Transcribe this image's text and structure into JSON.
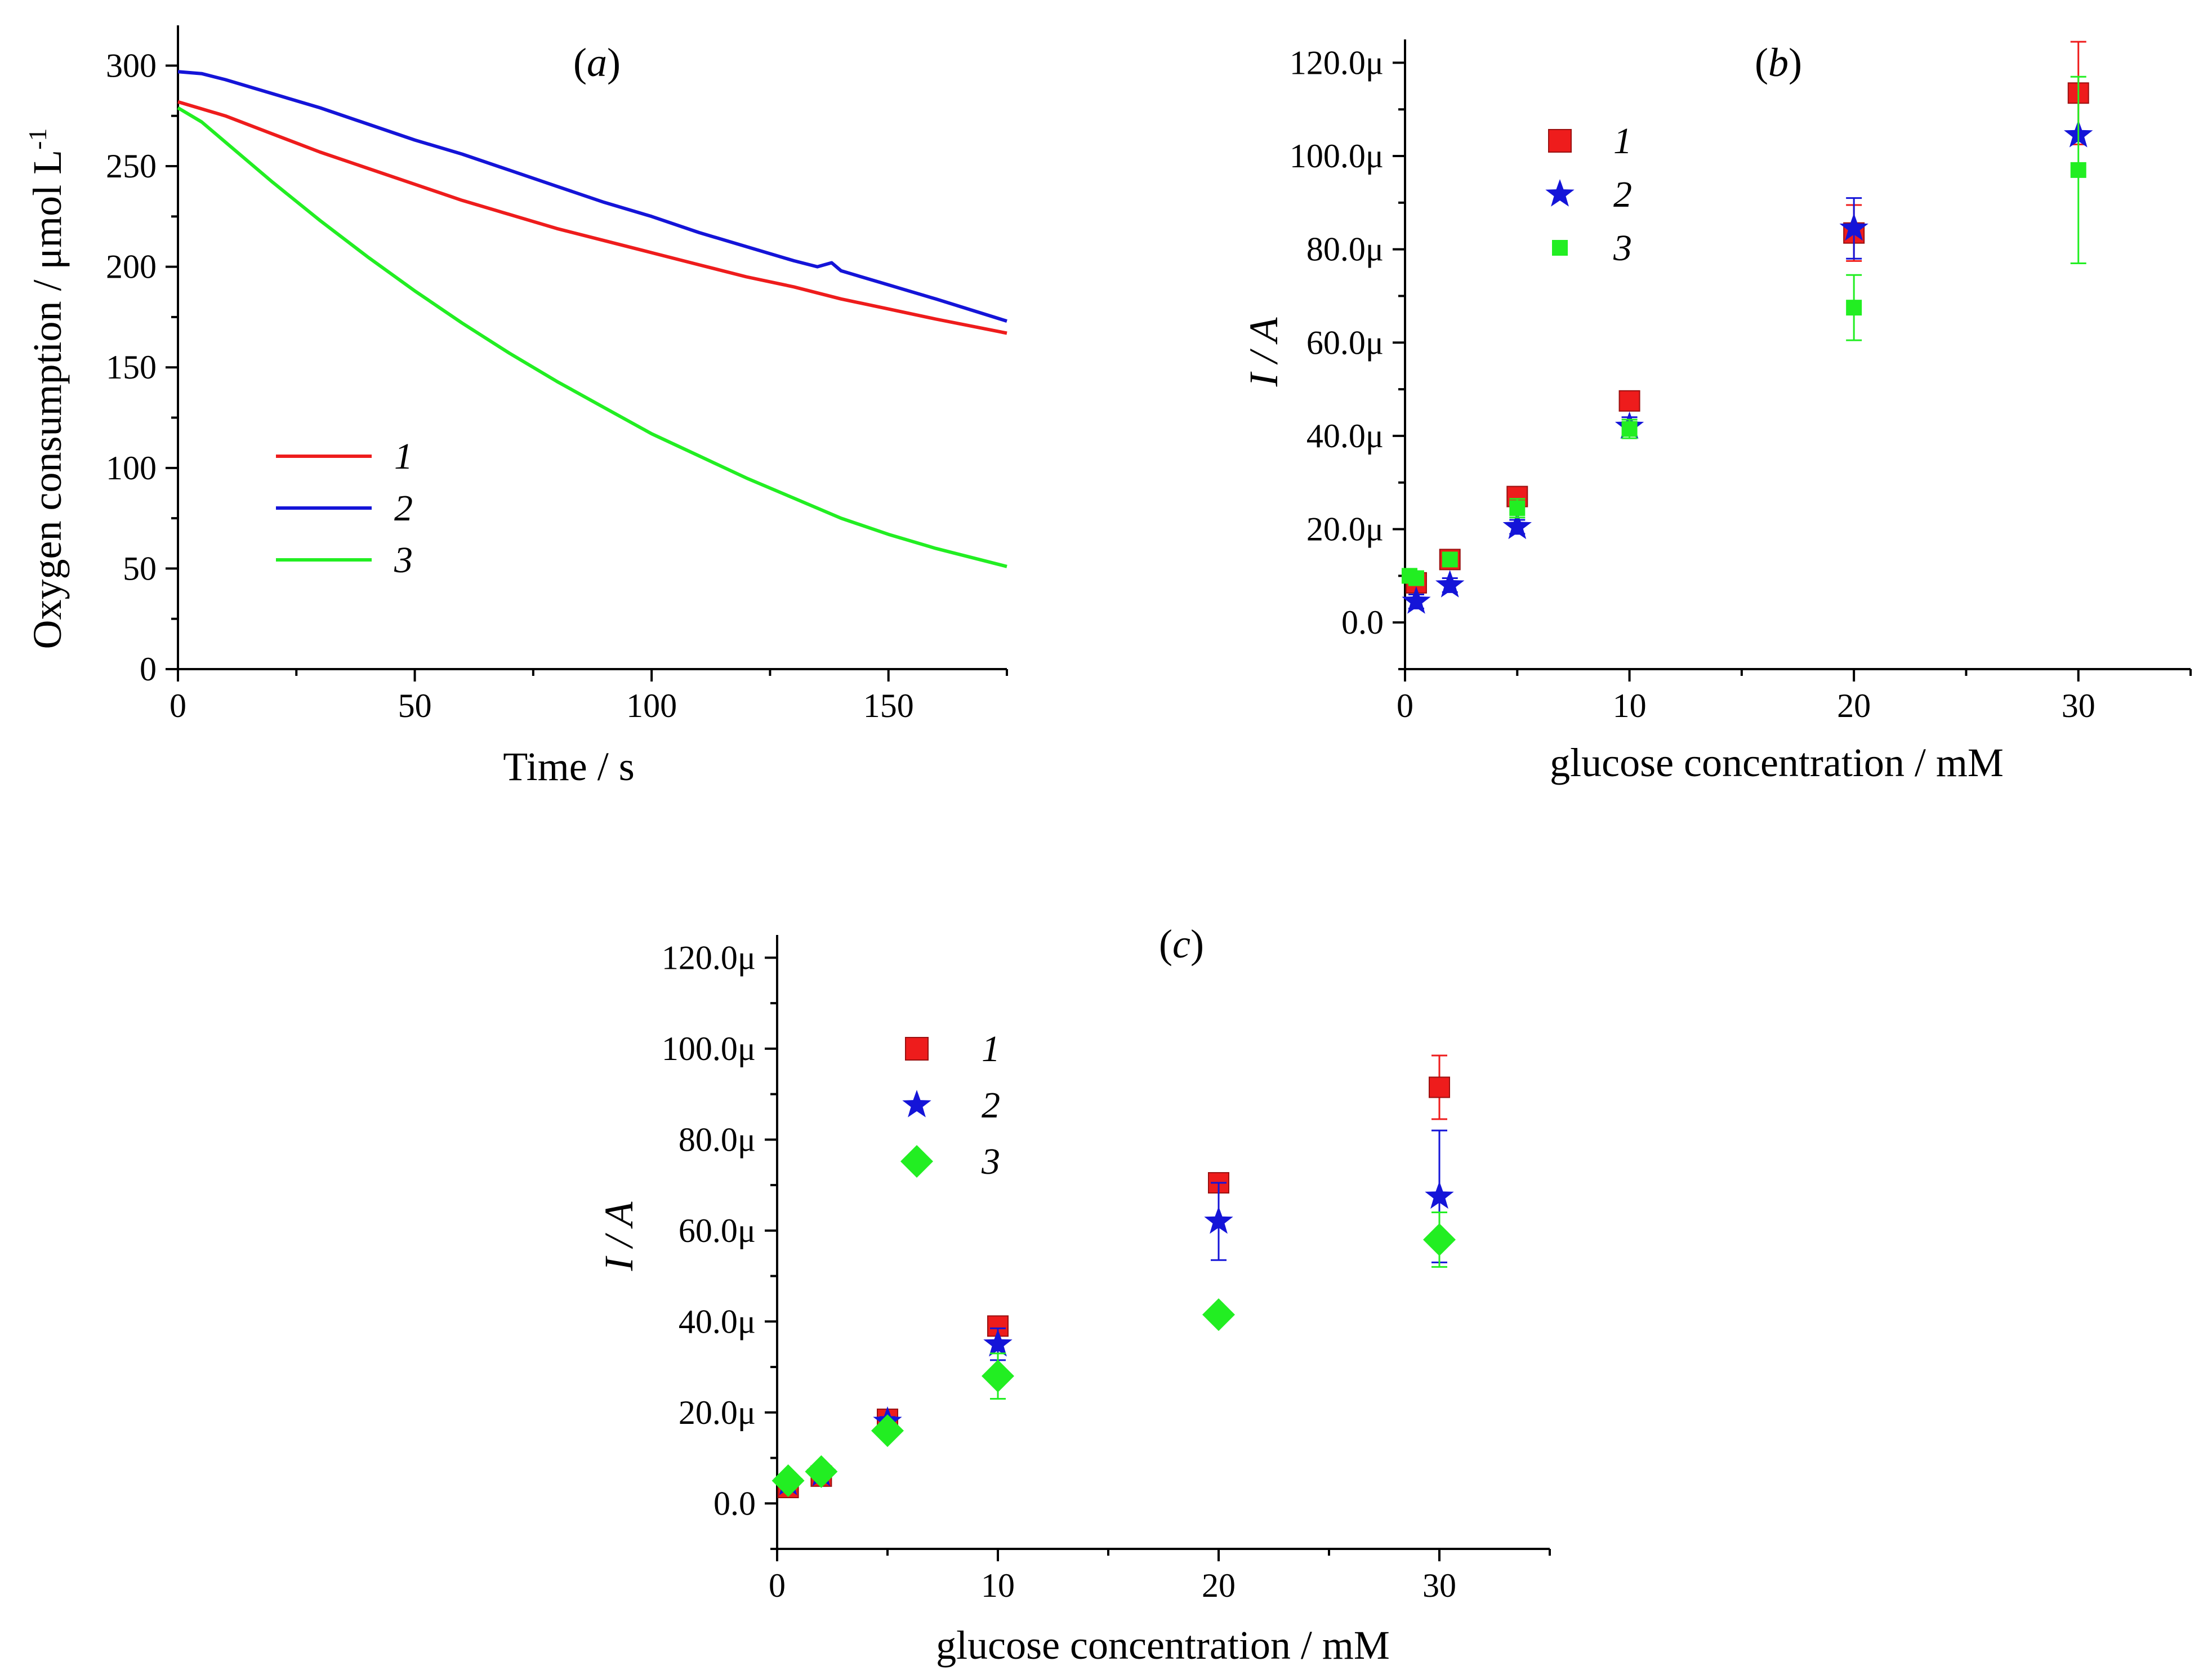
{
  "chart_data": [
    {
      "id": "a",
      "type": "line",
      "panel_label": "a",
      "xlabel": "Time / s",
      "ylabel": "Oxygen consumption / μmol L",
      "ylabel_sup": "-1",
      "xlim": [
        0,
        175
      ],
      "ylim": [
        0,
        320
      ],
      "xticks": [
        0,
        50,
        100,
        150
      ],
      "yticks": [
        0,
        50,
        100,
        150,
        200,
        250,
        300
      ],
      "legend_position": "center-left",
      "series": [
        {
          "name": "1",
          "color": "#ee1c1c",
          "x": [
            0,
            10,
            20,
            30,
            40,
            50,
            60,
            70,
            80,
            90,
            100,
            110,
            120,
            130,
            140,
            150,
            160,
            175
          ],
          "y": [
            282,
            275,
            266,
            257,
            249,
            241,
            233,
            226,
            219,
            213,
            207,
            201,
            195,
            190,
            184,
            179,
            174,
            167
          ]
        },
        {
          "name": "2",
          "color": "#1414d8",
          "x": [
            0,
            5,
            10,
            20,
            30,
            40,
            50,
            60,
            70,
            80,
            90,
            100,
            110,
            120,
            130,
            135,
            138,
            140,
            150,
            160,
            175
          ],
          "y": [
            297,
            296,
            293,
            286,
            279,
            271,
            263,
            256,
            248,
            240,
            232,
            225,
            217,
            210,
            203,
            200,
            202,
            198,
            191,
            184,
            173
          ]
        },
        {
          "name": "3",
          "color": "#22ee22",
          "x": [
            0,
            5,
            10,
            20,
            30,
            40,
            50,
            60,
            70,
            80,
            90,
            100,
            110,
            120,
            130,
            140,
            150,
            160,
            175
          ],
          "y": [
            279,
            272,
            262,
            242,
            223,
            205,
            188,
            172,
            157,
            143,
            130,
            117,
            106,
            95,
            85,
            75,
            67,
            60,
            51
          ]
        }
      ]
    },
    {
      "id": "b",
      "type": "scatter",
      "panel_label": "b",
      "xlabel": "glucose concentration / mM",
      "ylabel": "I / A",
      "xlim": [
        0,
        35
      ],
      "ylim": [
        -10,
        125
      ],
      "xticks": [
        0,
        10,
        20,
        30
      ],
      "yticks": [
        0,
        20,
        40,
        60,
        80,
        100,
        120
      ],
      "ytick_labels": [
        "0.0",
        "20.0μ",
        "40.0μ",
        "60.0μ",
        "80.0μ",
        "100.0μ",
        "120.0μ"
      ],
      "legend_position": "top-left",
      "series": [
        {
          "name": "1",
          "marker": "square",
          "color": "#ee1c1c",
          "x": [
            0.5,
            2,
            5,
            10,
            20,
            30
          ],
          "y": [
            8.5,
            13.5,
            27,
            47.5,
            83.5,
            113.5
          ],
          "err": [
            1.5,
            1.5,
            1.5,
            1.5,
            6,
            11
          ]
        },
        {
          "name": "2",
          "marker": "star",
          "color": "#1414d8",
          "x": [
            0.5,
            2,
            5,
            10,
            20,
            30
          ],
          "y": [
            4.5,
            8,
            20.5,
            42,
            84.5,
            104.5
          ],
          "err": [
            1.5,
            1.5,
            1.5,
            2,
            6.5,
            0
          ]
        },
        {
          "name": "3",
          "marker": "small-square",
          "color": "#22ee22",
          "x": [
            0.2,
            0.5,
            2,
            5,
            10,
            20,
            30
          ],
          "y": [
            10,
            9.5,
            13.5,
            24.5,
            41.5,
            67.5,
            97
          ],
          "err": [
            1,
            1,
            1,
            2,
            2,
            7,
            20
          ]
        }
      ]
    },
    {
      "id": "c",
      "type": "scatter",
      "panel_label": "c",
      "xlabel": "glucose concentration / mM",
      "ylabel": "I / A",
      "xlim": [
        0,
        35
      ],
      "ylim": [
        -10,
        125
      ],
      "xticks": [
        0,
        10,
        20,
        30
      ],
      "yticks": [
        0,
        20,
        40,
        60,
        80,
        100,
        120
      ],
      "ytick_labels": [
        "0.0",
        "20.0μ",
        "40.0μ",
        "60.0μ",
        "80.0μ",
        "100.0μ",
        "120.0μ"
      ],
      "legend_position": "top-left",
      "series": [
        {
          "name": "1",
          "marker": "square",
          "color": "#ee1c1c",
          "x": [
            0.5,
            2,
            5,
            10,
            20,
            30
          ],
          "y": [
            3.5,
            6,
            18.5,
            39,
            70.5,
            91.5
          ],
          "err": [
            1,
            1,
            1.5,
            2,
            2,
            7
          ]
        },
        {
          "name": "2",
          "marker": "star",
          "color": "#1414d8",
          "x": [
            0.5,
            2,
            5,
            10,
            20,
            30
          ],
          "y": [
            4.5,
            6.5,
            18,
            35,
            62,
            67.5
          ],
          "err": [
            1,
            1,
            1,
            3.5,
            8.5,
            14.5
          ]
        },
        {
          "name": "3",
          "marker": "diamond",
          "color": "#22ee22",
          "x": [
            0.5,
            2,
            5,
            10,
            20,
            30
          ],
          "y": [
            5,
            7,
            16,
            28,
            41.5,
            58
          ],
          "err": [
            1,
            1,
            1,
            5,
            0,
            6
          ]
        }
      ]
    }
  ]
}
